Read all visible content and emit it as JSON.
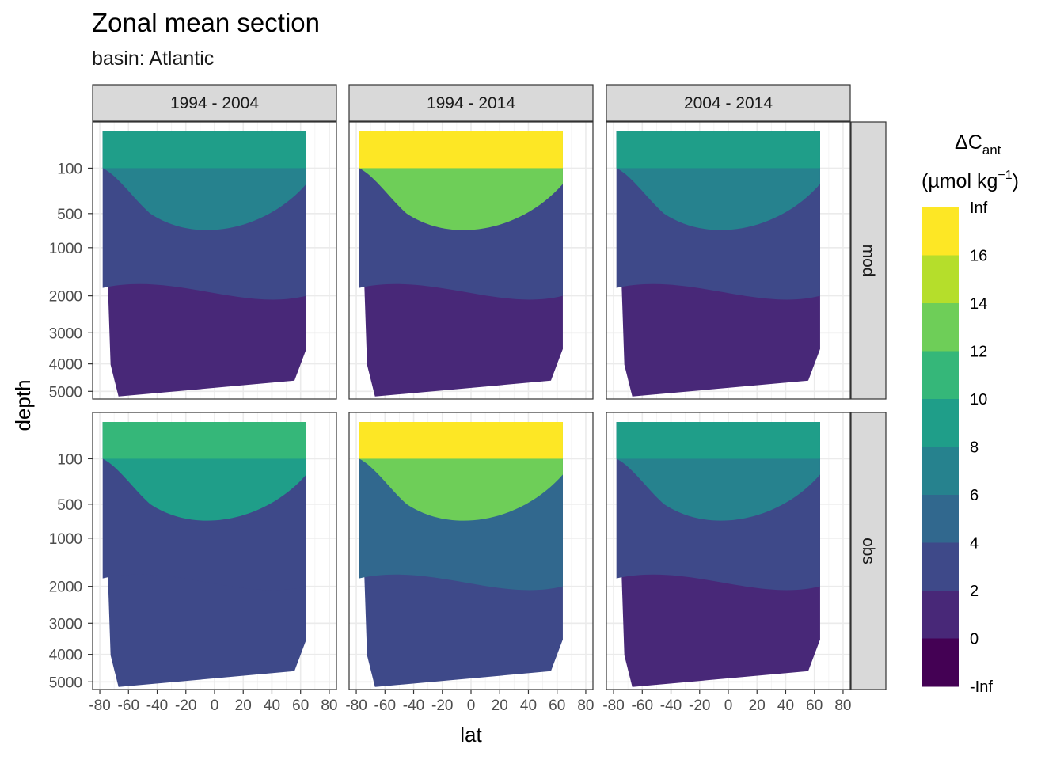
{
  "chart_data": {
    "type": "heatmap",
    "title": "Zonal mean section",
    "subtitle": "basin: Atlantic",
    "xlabel": "lat",
    "ylabel": "depth",
    "x_ticks": [
      -80,
      -60,
      -40,
      -20,
      0,
      20,
      40,
      60,
      80
    ],
    "x_tick_labels": [
      "-80",
      "-60",
      "-40",
      "-20",
      "0",
      "20",
      "40",
      "60",
      "80"
    ],
    "y_ticks": [
      100,
      500,
      1000,
      2000,
      3000,
      4000,
      5000
    ],
    "y_tick_labels": [
      "100",
      "500",
      "1000",
      "2000",
      "3000",
      "4000",
      "5000"
    ],
    "y_scale": "sqrt-reversed",
    "xlim": [
      -85,
      85
    ],
    "ylim": [
      5300,
      0
    ],
    "grid": true,
    "facet_columns": [
      "1994 - 2004",
      "1994 - 2014",
      "2004 - 2014"
    ],
    "facet_rows": [
      "mod",
      "obs"
    ],
    "legend": {
      "title_main": "ΔC",
      "title_sub": "ant",
      "title_unit_open": "(µmol kg",
      "title_unit_sup": "−1",
      "title_unit_close": ")",
      "breaks": [
        "Inf",
        "16",
        "14",
        "12",
        "10",
        "8",
        "6",
        "4",
        "2",
        "0",
        "-Inf"
      ],
      "colors": [
        "#fde725",
        "#b5de2b",
        "#6ece58",
        "#35b779",
        "#1f9e89",
        "#26828e",
        "#31688e",
        "#3e4989",
        "#482878",
        "#440154"
      ],
      "position": "right"
    },
    "panels": [
      {
        "row": "mod",
        "col": "1994 - 2004",
        "levels": {
          "surface": 8.5,
          "upper": 7.0,
          "mid": 2.5,
          "deep": 0.5
        }
      },
      {
        "row": "mod",
        "col": "1994 - 2014",
        "levels": {
          "surface": 17.0,
          "upper": 12.0,
          "mid": 3.0,
          "deep": 1.0
        }
      },
      {
        "row": "mod",
        "col": "2004 - 2014",
        "levels": {
          "surface": 9.0,
          "upper": 7.5,
          "mid": 3.0,
          "deep": 1.0
        }
      },
      {
        "row": "obs",
        "col": "1994 - 2004",
        "levels": {
          "surface": 10.0,
          "upper": 8.0,
          "mid": 3.5,
          "deep": 2.0
        }
      },
      {
        "row": "obs",
        "col": "1994 - 2014",
        "levels": {
          "surface": 17.0,
          "upper": 12.0,
          "mid": 5.0,
          "deep": 3.0
        }
      },
      {
        "row": "obs",
        "col": "2004 - 2014",
        "levels": {
          "surface": 9.0,
          "upper": 7.0,
          "mid": 3.0,
          "deep": 1.0
        }
      }
    ]
  }
}
